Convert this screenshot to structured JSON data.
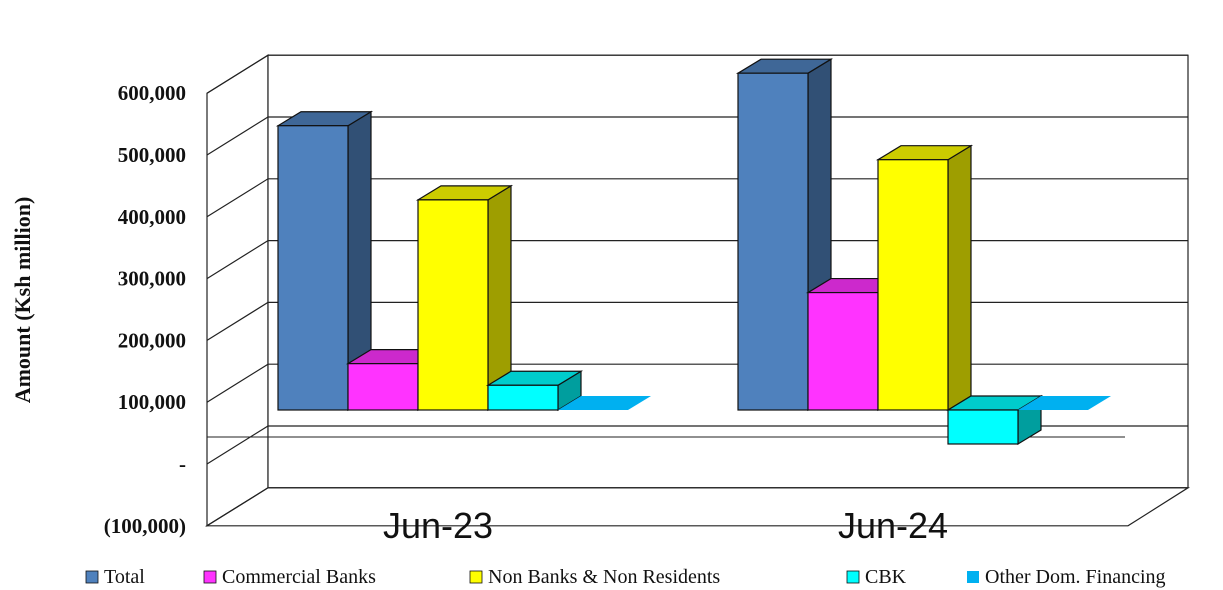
{
  "chart_data": {
    "type": "bar",
    "ylabel": "Amount (Ksh million)",
    "xlabel": "",
    "ylim": [
      -100000,
      600000
    ],
    "y_ticks": [
      600000,
      500000,
      400000,
      300000,
      200000,
      100000,
      0,
      -100000
    ],
    "y_tick_labels": [
      "600,000",
      "500,000",
      "400,000",
      "300,000",
      "200,000",
      "100,000",
      "-",
      "(100,000)"
    ],
    "categories": [
      "Jun-23",
      "Jun-24"
    ],
    "series": [
      {
        "name": "Total",
        "values": [
          460000,
          545000
        ],
        "color": "#4F81BD"
      },
      {
        "name": "Commercial Banks",
        "values": [
          75000,
          190000
        ],
        "color": "#FF33FF"
      },
      {
        "name": "Non Banks & Non Residents",
        "values": [
          340000,
          405000
        ],
        "color": "#FFFF00"
      },
      {
        "name": "CBK",
        "values": [
          40000,
          -55000
        ],
        "color": "#00FFFF"
      },
      {
        "name": "Other Dom. Financing",
        "values": [
          0,
          0
        ],
        "color": "#00B0F0"
      }
    ],
    "grid": true,
    "legend_position": "bottom"
  }
}
